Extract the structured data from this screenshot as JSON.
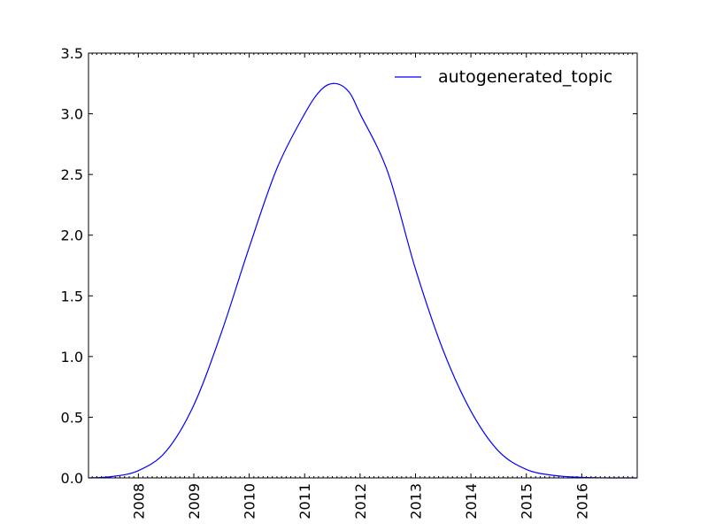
{
  "chart_data": {
    "type": "line",
    "title": "",
    "xlabel": "",
    "ylabel": "",
    "xlim": [
      2007.1,
      2017.0
    ],
    "ylim": [
      0.0,
      3.5
    ],
    "grid": false,
    "legend_placement": "top-right",
    "x_ticks": [
      {
        "value": 2008,
        "label": "2008"
      },
      {
        "value": 2009,
        "label": "2009"
      },
      {
        "value": 2010,
        "label": "2010"
      },
      {
        "value": 2011,
        "label": "2011"
      },
      {
        "value": 2012,
        "label": "2012"
      },
      {
        "value": 2013,
        "label": "2013"
      },
      {
        "value": 2014,
        "label": "2014"
      },
      {
        "value": 2015,
        "label": "2015"
      },
      {
        "value": 2016,
        "label": "2016"
      }
    ],
    "y_ticks": [
      {
        "value": 0.0,
        "label": "0.0"
      },
      {
        "value": 0.5,
        "label": "0.5"
      },
      {
        "value": 1.0,
        "label": "1.0"
      },
      {
        "value": 1.5,
        "label": "1.5"
      },
      {
        "value": 2.0,
        "label": "2.0"
      },
      {
        "value": 2.5,
        "label": "2.5"
      },
      {
        "value": 3.0,
        "label": "3.0"
      },
      {
        "value": 3.5,
        "label": "3.5"
      }
    ],
    "series": [
      {
        "name": "autogenerated_topic",
        "color": "#0000ff",
        "x": [
          2007.1,
          2007.5,
          2008.0,
          2008.5,
          2009.0,
          2009.5,
          2010.0,
          2010.5,
          2011.0,
          2011.3,
          2011.55,
          2011.8,
          2012.0,
          2012.5,
          2013.0,
          2013.5,
          2014.0,
          2014.5,
          2015.0,
          2015.5,
          2016.0,
          2016.5,
          2017.0
        ],
        "y": [
          0.0,
          0.01,
          0.06,
          0.22,
          0.6,
          1.2,
          1.9,
          2.55,
          3.0,
          3.2,
          3.25,
          3.18,
          3.0,
          2.52,
          1.72,
          1.05,
          0.55,
          0.22,
          0.07,
          0.02,
          0.005,
          0.0,
          0.0
        ]
      }
    ]
  }
}
